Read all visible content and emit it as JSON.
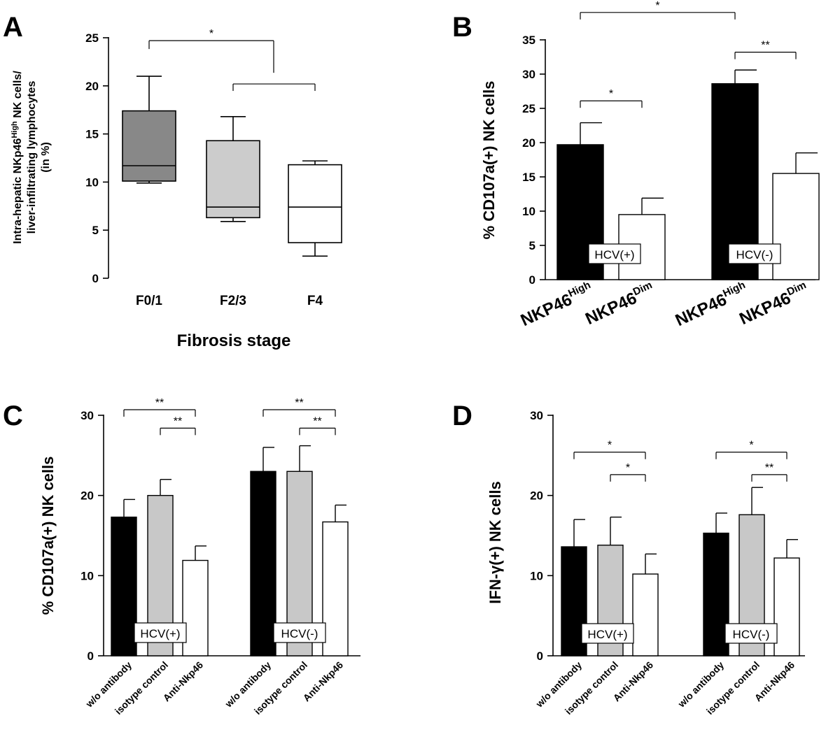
{
  "chart_data": [
    {
      "panel": "A",
      "type": "box",
      "ylabel": [
        "Intra-hepatic NKp46",
        "High",
        " NK cells/",
        "liver-infiltrating lymphocytes",
        "(in %)"
      ],
      "xlabel": "Fibrosis stage",
      "ylim": [
        0,
        25
      ],
      "yticks": [
        "0",
        "5",
        "10",
        "15",
        "20",
        "25"
      ],
      "categories": [
        "F0/1",
        "F2/3",
        "F4"
      ],
      "boxes": [
        {
          "category": "F0/1",
          "min": 9.9,
          "q1": 10.1,
          "median": 11.7,
          "q3": 17.4,
          "max": 21.0,
          "fill": "#888888"
        },
        {
          "category": "F2/3",
          "min": 5.9,
          "q1": 6.3,
          "median": 7.4,
          "q3": 14.3,
          "max": 16.8,
          "fill": "#cccccc"
        },
        {
          "category": "F4",
          "min": 2.3,
          "q1": 3.7,
          "median": 7.4,
          "q3": 11.8,
          "max": 12.2,
          "fill": "#ffffff"
        }
      ],
      "significance": [
        {
          "label": "*",
          "from": 0,
          "to": "bracket1",
          "y": 24.7
        },
        {
          "label": "",
          "from": 1,
          "to": 2,
          "y": 20.2
        }
      ]
    },
    {
      "panel": "B",
      "type": "bar",
      "ylabel": "% CD107a(+) NK cells",
      "ylim": [
        0,
        35
      ],
      "yticks": [
        "0",
        "5",
        "10",
        "15",
        "20",
        "25",
        "30",
        "35"
      ],
      "groups": [
        "HCV(+)",
        "HCV(-)"
      ],
      "xtick_labels": [
        {
          "base": "NKP46",
          "sup": "High"
        },
        {
          "base": "NKP46",
          "sup": "Dim"
        },
        {
          "base": "NKP46",
          "sup": "High"
        },
        {
          "base": "NKP46",
          "sup": "Dim"
        }
      ],
      "bars": [
        {
          "value": 19.7,
          "error": 3.2,
          "fill": "#000000"
        },
        {
          "value": 9.5,
          "error": 2.4,
          "fill": "#ffffff"
        },
        {
          "value": 28.6,
          "error": 2.0,
          "fill": "#000000"
        },
        {
          "value": 15.5,
          "error": 3.0,
          "fill": "#ffffff"
        }
      ],
      "significance": [
        {
          "label": "*",
          "from": 0,
          "to": 1,
          "y": 26.1
        },
        {
          "label": "**",
          "from": 2,
          "to": 3,
          "y": 33.2
        },
        {
          "label": "*",
          "from": 0,
          "to": 2,
          "y": 39.0
        }
      ]
    },
    {
      "panel": "C",
      "type": "bar",
      "ylabel": "% CD107a(+) NK cells",
      "ylim": [
        0,
        30
      ],
      "yticks": [
        "0",
        "10",
        "20",
        "30"
      ],
      "groups": [
        "HCV(+)",
        "HCV(-)"
      ],
      "xtick_labels": [
        "w/o antibody",
        "isotype control",
        "Anti-Nkp46",
        "w/o antibody",
        "isotype control",
        "Anti-Nkp46"
      ],
      "bars": [
        {
          "value": 17.3,
          "error": 2.2,
          "fill": "#000000"
        },
        {
          "value": 20.0,
          "error": 2.0,
          "fill": "#c8c8c8"
        },
        {
          "value": 11.9,
          "error": 1.8,
          "fill": "#ffffff"
        },
        {
          "value": 23.0,
          "error": 3.0,
          "fill": "#000000"
        },
        {
          "value": 23.0,
          "error": 3.2,
          "fill": "#c8c8c8"
        },
        {
          "value": 16.7,
          "error": 2.1,
          "fill": "#ffffff"
        }
      ],
      "significance": [
        {
          "label": "**",
          "from": 0,
          "to": 2,
          "y": 30.7
        },
        {
          "label": "**",
          "from": 1,
          "to": 2,
          "y": 28.4
        },
        {
          "label": "**",
          "from": 3,
          "to": 5,
          "y": 30.7
        },
        {
          "label": "**",
          "from": 4,
          "to": 5,
          "y": 28.4
        }
      ]
    },
    {
      "panel": "D",
      "type": "bar",
      "ylabel": [
        "IFN-",
        "γ",
        "(+) NK cells"
      ],
      "ylim": [
        0,
        30
      ],
      "yticks": [
        "0",
        "10",
        "20",
        "30"
      ],
      "groups": [
        "HCV(+)",
        "HCV(-)"
      ],
      "xtick_labels": [
        "w/o antibody",
        "isotype control",
        "Anti-Nkp46",
        "w/o antibody",
        "isotype control",
        "Anti-Nkp46"
      ],
      "bars": [
        {
          "value": 13.6,
          "error": 3.4,
          "fill": "#000000"
        },
        {
          "value": 13.8,
          "error": 3.5,
          "fill": "#c8c8c8"
        },
        {
          "value": 10.2,
          "error": 2.5,
          "fill": "#ffffff"
        },
        {
          "value": 15.3,
          "error": 2.5,
          "fill": "#000000"
        },
        {
          "value": 17.6,
          "error": 3.4,
          "fill": "#c8c8c8"
        },
        {
          "value": 12.2,
          "error": 2.3,
          "fill": "#ffffff"
        }
      ],
      "significance": [
        {
          "label": "*",
          "from": 0,
          "to": 2,
          "y": 25.4
        },
        {
          "label": "*",
          "from": 1,
          "to": 2,
          "y": 22.6
        },
        {
          "label": "*",
          "from": 3,
          "to": 5,
          "y": 25.4
        },
        {
          "label": "**",
          "from": 4,
          "to": 5,
          "y": 22.6
        }
      ]
    }
  ]
}
